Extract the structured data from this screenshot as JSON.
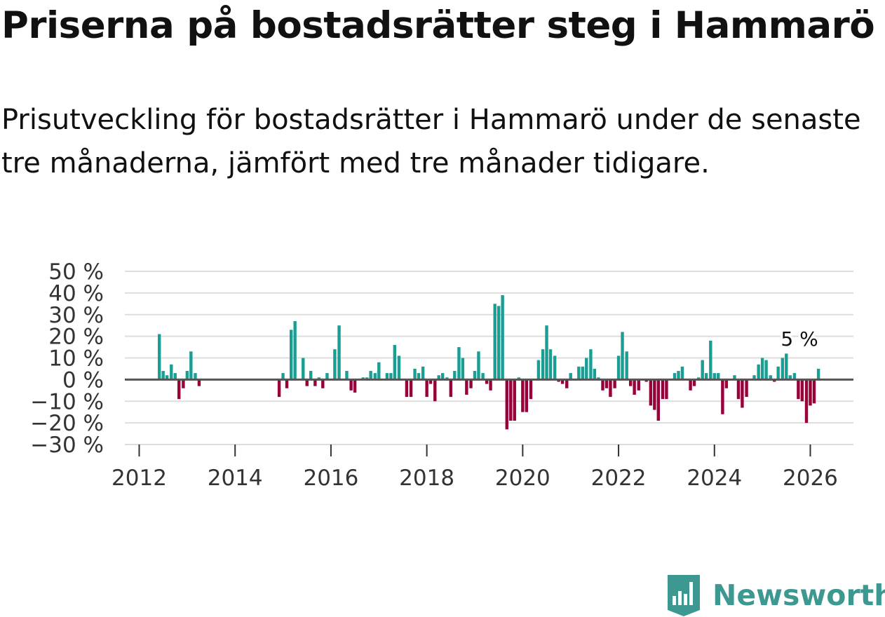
{
  "header": {
    "title": "Priserna på bostadsrätter steg i Hammarö",
    "subtitle": "Prisutveckling för bostadsrätter i Hammarö under de senaste tre månaderna, jämfört med tre månader tidigare."
  },
  "brand": {
    "name": "Newsworthy"
  },
  "colors": {
    "positive": "#1a9e93",
    "negative": "#98003a",
    "zero_line": "#555555",
    "grid": "#dddddd",
    "brand": "#3c9891"
  },
  "chart_data": {
    "type": "bar",
    "title": "Priserna på bostadsrätter steg i Hammarö",
    "subtitle": "Prisutveckling för bostadsrätter i Hammarö under de senaste tre månaderna, jämfört med tre månader tidigare.",
    "xlabel": "",
    "ylabel": "",
    "ylim": [
      -30,
      50
    ],
    "xlim": [
      2011.7,
      2026.9
    ],
    "y_ticks": [
      50,
      40,
      30,
      20,
      10,
      0,
      -10,
      -20,
      -30
    ],
    "y_tick_labels": [
      "50 %",
      "40 %",
      "30 %",
      "20 %",
      "10 %",
      "0 %",
      "−10 %",
      "−20 %",
      "−30 %"
    ],
    "x_ticks": [
      2012,
      2014,
      2016,
      2018,
      2020,
      2022,
      2024,
      2026
    ],
    "x_tick_labels": [
      "2012",
      "2014",
      "2016",
      "2018",
      "2020",
      "2022",
      "2024",
      "2026"
    ],
    "grid": true,
    "annotation": {
      "label": "5 %",
      "x": 2026.17,
      "y": 5
    },
    "series": [
      {
        "name": "Prisutveckling",
        "x": [
          2012.42,
          2012.5,
          2012.58,
          2012.67,
          2012.75,
          2012.83,
          2012.92,
          2013.0,
          2013.08,
          2013.17,
          2013.25,
          2014.92,
          2015.0,
          2015.08,
          2015.17,
          2015.25,
          2015.33,
          2015.42,
          2015.5,
          2015.58,
          2015.67,
          2015.75,
          2015.83,
          2015.92,
          2016.0,
          2016.08,
          2016.17,
          2016.25,
          2016.33,
          2016.42,
          2016.5,
          2016.58,
          2016.67,
          2016.75,
          2016.83,
          2016.92,
          2017.0,
          2017.08,
          2017.17,
          2017.25,
          2017.33,
          2017.42,
          2017.5,
          2017.58,
          2017.67,
          2017.75,
          2017.83,
          2017.92,
          2018.0,
          2018.08,
          2018.17,
          2018.25,
          2018.33,
          2018.42,
          2018.5,
          2018.58,
          2018.67,
          2018.75,
          2018.83,
          2018.92,
          2019.0,
          2019.08,
          2019.17,
          2019.25,
          2019.33,
          2019.42,
          2019.5,
          2019.58,
          2019.67,
          2019.75,
          2019.83,
          2019.92,
          2020.0,
          2020.08,
          2020.17,
          2020.25,
          2020.33,
          2020.42,
          2020.5,
          2020.58,
          2020.67,
          2020.75,
          2020.83,
          2020.92,
          2021.0,
          2021.08,
          2021.17,
          2021.25,
          2021.33,
          2021.42,
          2021.5,
          2021.58,
          2021.67,
          2021.75,
          2021.83,
          2021.92,
          2022.0,
          2022.08,
          2022.17,
          2022.25,
          2022.33,
          2022.42,
          2022.5,
          2022.58,
          2022.67,
          2022.75,
          2022.83,
          2022.92,
          2023.0,
          2023.08,
          2023.17,
          2023.25,
          2023.33,
          2023.42,
          2023.5,
          2023.58,
          2023.67,
          2023.75,
          2023.83,
          2023.92,
          2024.0,
          2024.08,
          2024.17,
          2024.25,
          2024.33,
          2024.42,
          2024.5,
          2024.58,
          2024.67,
          2024.75,
          2024.83,
          2024.92,
          2025.0,
          2025.08,
          2025.17,
          2025.25,
          2025.33,
          2025.42,
          2025.5,
          2025.58,
          2025.67,
          2025.75,
          2025.83,
          2025.92,
          2026.0,
          2026.08,
          2026.17
        ],
        "values": [
          21,
          4,
          2,
          7,
          3,
          -9,
          -4,
          4,
          13,
          3,
          -3,
          -8,
          3,
          -4,
          23,
          27,
          0,
          10,
          -3,
          4,
          -3,
          1,
          -4,
          3,
          0,
          14,
          25,
          0,
          4,
          -5,
          -6,
          0,
          1,
          1,
          4,
          3,
          8,
          0,
          3,
          3,
          16,
          11,
          0,
          -8,
          -8,
          5,
          3,
          6,
          -8,
          -2,
          -10,
          2,
          3,
          1,
          -8,
          4,
          15,
          10,
          -7,
          -4,
          4,
          13,
          3,
          -2,
          -5,
          35,
          34,
          39,
          -23,
          -19,
          -19,
          1,
          -15,
          -15,
          -9,
          0,
          9,
          14,
          25,
          14,
          11,
          -1,
          -2,
          -4,
          3,
          0,
          6,
          6,
          10,
          14,
          5,
          1,
          -5,
          -4,
          -8,
          -4,
          11,
          22,
          13,
          -3,
          -7,
          -5,
          0,
          -1,
          -12,
          -14,
          -19,
          -9,
          -9,
          0,
          3,
          4,
          6,
          0,
          -5,
          -3,
          1,
          9,
          3,
          18,
          3,
          3,
          -16,
          -4,
          0,
          2,
          -9,
          -13,
          -8,
          0,
          2,
          7,
          10,
          9,
          2,
          -1,
          6,
          10,
          12,
          2,
          3,
          -9,
          -10,
          -20,
          -12,
          -11,
          5
        ]
      }
    ]
  }
}
